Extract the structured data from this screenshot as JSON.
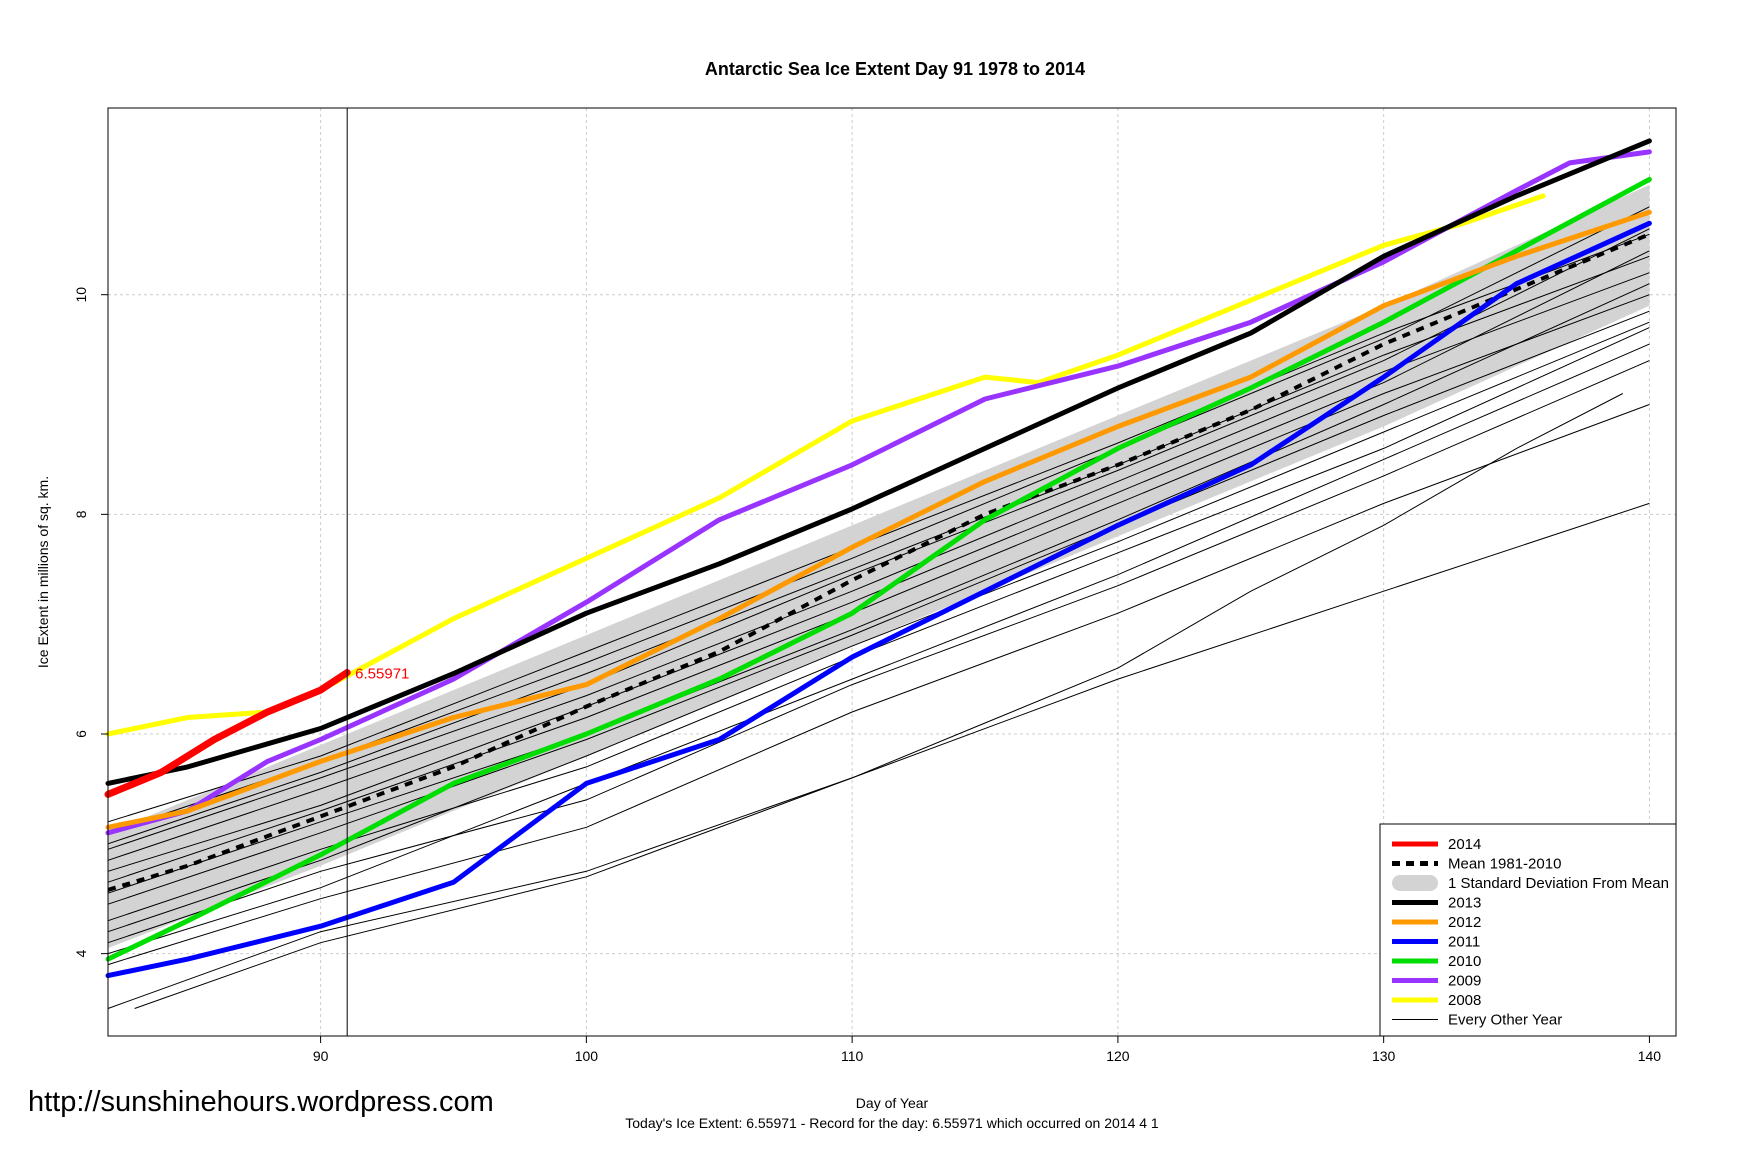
{
  "watermark": "http://sunshinehours.wordpress.com",
  "footer_note": "Today's Ice Extent: 6.55971  - Record for the day: 6.55971 which occurred on 2014 4 1",
  "colors": {
    "y2014": "#ff0000",
    "y2013": "#000000",
    "y2012": "#ff9900",
    "y2011": "#0000ff",
    "y2010": "#00dd00",
    "y2009": "#9933ff",
    "y2008": "#ffff00",
    "mean": "#000000",
    "sd_band": "#d3d3d3",
    "other_years": "#000000"
  },
  "chart_data": {
    "type": "line",
    "title": "Antarctic Sea Ice Extent Day 91 1978 to 2014",
    "xlabel": "Day of Year",
    "ylabel": "Ice Extent in millions of sq. km.",
    "xlim": [
      82,
      141
    ],
    "ylim": [
      3.25,
      11.7
    ],
    "x_ticks": [
      90,
      100,
      110,
      120,
      130,
      140
    ],
    "y_ticks": [
      4,
      6,
      8,
      10
    ],
    "grid": true,
    "legend_position": "bottom-right",
    "marker_day": 91,
    "marker_value": 6.55971,
    "marker_label": "6.55971",
    "legend": [
      {
        "label": "2014",
        "key": "y2014",
        "style": "thick"
      },
      {
        "label": "Mean 1981-2010",
        "key": "mean",
        "style": "dashed"
      },
      {
        "label": "1 Standard Deviation From Mean",
        "key": "sd_band",
        "style": "band"
      },
      {
        "label": "2013",
        "key": "y2013",
        "style": "thick"
      },
      {
        "label": "2012",
        "key": "y2012",
        "style": "thick"
      },
      {
        "label": "2011",
        "key": "y2011",
        "style": "thick"
      },
      {
        "label": "2010",
        "key": "y2010",
        "style": "thick"
      },
      {
        "label": "2009",
        "key": "y2009",
        "style": "thick"
      },
      {
        "label": "2008",
        "key": "y2008",
        "style": "thick"
      },
      {
        "label": "Every Other Year",
        "key": "other_years",
        "style": "thin"
      }
    ],
    "sd_band": {
      "x": [
        82,
        90,
        100,
        110,
        120,
        130,
        140
      ],
      "upper": [
        5.1,
        5.9,
        6.9,
        7.9,
        8.9,
        9.9,
        11.0
      ],
      "lower": [
        4.05,
        4.8,
        5.8,
        6.8,
        7.8,
        8.8,
        9.9
      ]
    },
    "mean": {
      "x": [
        82,
        85,
        90,
        95,
        100,
        105,
        110,
        115,
        120,
        125,
        130,
        135,
        140
      ],
      "values": [
        4.58,
        4.8,
        5.25,
        5.7,
        6.25,
        6.75,
        7.4,
        8.0,
        8.45,
        8.95,
        9.55,
        10.05,
        10.55
      ]
    },
    "series": [
      {
        "name": "2008",
        "key": "y2008",
        "x": [
          82,
          85,
          88,
          90,
          95,
          100,
          105,
          110,
          115,
          117,
          120,
          125,
          130,
          133,
          136
        ],
        "values": [
          6.0,
          6.15,
          6.2,
          6.4,
          7.05,
          7.6,
          8.15,
          8.85,
          9.25,
          9.2,
          9.45,
          9.95,
          10.45,
          10.65,
          10.9
        ]
      },
      {
        "name": "2009",
        "key": "y2009",
        "x": [
          82,
          85,
          88,
          90,
          95,
          100,
          105,
          110,
          115,
          120,
          125,
          130,
          135,
          137,
          140
        ],
        "values": [
          5.1,
          5.3,
          5.75,
          5.95,
          6.5,
          7.2,
          7.95,
          8.45,
          9.05,
          9.35,
          9.75,
          10.3,
          10.95,
          11.2,
          11.3
        ]
      },
      {
        "name": "2010",
        "key": "y2010",
        "x": [
          82,
          85,
          90,
          95,
          100,
          105,
          110,
          115,
          120,
          125,
          130,
          135,
          140
        ],
        "values": [
          3.95,
          4.3,
          4.9,
          5.55,
          6.0,
          6.5,
          7.1,
          7.95,
          8.6,
          9.15,
          9.75,
          10.4,
          11.05
        ]
      },
      {
        "name": "2011",
        "key": "y2011",
        "x": [
          82,
          85,
          90,
          95,
          100,
          105,
          110,
          115,
          120,
          125,
          130,
          135,
          140
        ],
        "values": [
          3.8,
          3.95,
          4.25,
          4.65,
          5.55,
          5.95,
          6.7,
          7.3,
          7.9,
          8.45,
          9.25,
          10.1,
          10.65
        ]
      },
      {
        "name": "2012",
        "key": "y2012",
        "x": [
          82,
          85,
          90,
          95,
          100,
          105,
          110,
          115,
          120,
          125,
          130,
          135,
          140
        ],
        "values": [
          5.15,
          5.3,
          5.75,
          6.15,
          6.45,
          7.05,
          7.7,
          8.3,
          8.8,
          9.25,
          9.9,
          10.35,
          10.75
        ]
      },
      {
        "name": "2013",
        "key": "y2013",
        "x": [
          82,
          85,
          90,
          95,
          100,
          105,
          110,
          115,
          120,
          125,
          130,
          135,
          140
        ],
        "values": [
          5.55,
          5.7,
          6.05,
          6.55,
          7.1,
          7.55,
          8.05,
          8.6,
          9.15,
          9.65,
          10.35,
          10.9,
          11.4
        ]
      },
      {
        "name": "2014",
        "key": "y2014",
        "x": [
          82,
          84,
          86,
          88,
          90,
          91
        ],
        "values": [
          5.45,
          5.65,
          5.95,
          6.2,
          6.4,
          6.56
        ]
      }
    ],
    "other_years": [
      {
        "x": [
          82,
          90,
          100,
          110,
          120,
          130,
          140
        ],
        "values": [
          3.5,
          4.2,
          4.75,
          5.6,
          6.5,
          7.3,
          8.1
        ]
      },
      {
        "x": [
          82,
          90,
          100,
          110,
          120,
          130,
          140
        ],
        "values": [
          3.9,
          4.5,
          5.15,
          6.2,
          7.1,
          8.1,
          9.0
        ]
      },
      {
        "x": [
          82,
          90,
          100,
          110,
          120,
          130,
          140
        ],
        "values": [
          4.1,
          4.75,
          5.4,
          6.45,
          7.35,
          8.35,
          9.4
        ]
      },
      {
        "x": [
          82,
          90,
          100,
          110,
          120,
          130,
          140
        ],
        "values": [
          4.3,
          4.95,
          5.7,
          6.7,
          7.65,
          8.6,
          9.7
        ]
      },
      {
        "x": [
          82,
          90,
          100,
          110,
          120,
          130,
          140
        ],
        "values": [
          4.45,
          5.1,
          5.95,
          6.9,
          7.9,
          8.9,
          9.85
        ]
      },
      {
        "x": [
          82,
          90,
          100,
          110,
          120,
          130,
          140
        ],
        "values": [
          4.65,
          5.3,
          6.15,
          7.1,
          8.1,
          9.1,
          10.0
        ]
      },
      {
        "x": [
          82,
          90,
          100,
          110,
          120,
          130,
          140
        ],
        "values": [
          4.85,
          5.5,
          6.35,
          7.3,
          8.3,
          9.3,
          10.2
        ]
      },
      {
        "x": [
          82,
          90,
          100,
          110,
          120,
          130,
          140
        ],
        "values": [
          5.0,
          5.65,
          6.55,
          7.5,
          8.45,
          9.45,
          10.35
        ]
      },
      {
        "x": [
          82,
          90,
          100,
          110,
          120,
          130,
          140
        ],
        "values": [
          5.2,
          5.8,
          6.75,
          7.7,
          8.65,
          9.65,
          10.55
        ]
      },
      {
        "x": [
          82,
          90,
          100,
          110,
          120,
          130,
          140
        ],
        "values": [
          4.2,
          4.85,
          5.8,
          6.8,
          7.75,
          8.75,
          9.75
        ]
      },
      {
        "x": [
          82,
          90,
          100,
          110,
          120,
          130,
          140
        ],
        "values": [
          4.55,
          5.2,
          6.0,
          6.95,
          7.95,
          9.0,
          10.1
        ]
      },
      {
        "x": [
          82,
          90,
          100,
          110,
          120,
          130,
          140
        ],
        "values": [
          4.75,
          5.35,
          6.25,
          7.2,
          8.2,
          9.2,
          10.4
        ]
      },
      {
        "x": [
          82,
          90,
          100,
          110,
          120,
          130,
          140
        ],
        "values": [
          4.95,
          5.6,
          6.45,
          7.45,
          8.4,
          9.4,
          10.6
        ]
      },
      {
        "x": [
          82,
          90,
          100,
          110,
          120,
          130,
          140
        ],
        "values": [
          5.1,
          5.75,
          6.65,
          7.6,
          8.6,
          9.6,
          10.8
        ]
      },
      {
        "x": [
          82,
          90,
          100,
          110,
          120,
          130,
          140
        ],
        "values": [
          4.0,
          4.6,
          5.55,
          6.5,
          7.45,
          8.5,
          9.55
        ]
      },
      {
        "x": [
          83,
          90,
          100,
          110,
          115,
          120,
          125,
          130,
          135,
          139
        ],
        "values": [
          3.5,
          4.1,
          4.7,
          5.6,
          6.1,
          6.6,
          7.3,
          7.9,
          8.6,
          9.1
        ]
      }
    ]
  }
}
